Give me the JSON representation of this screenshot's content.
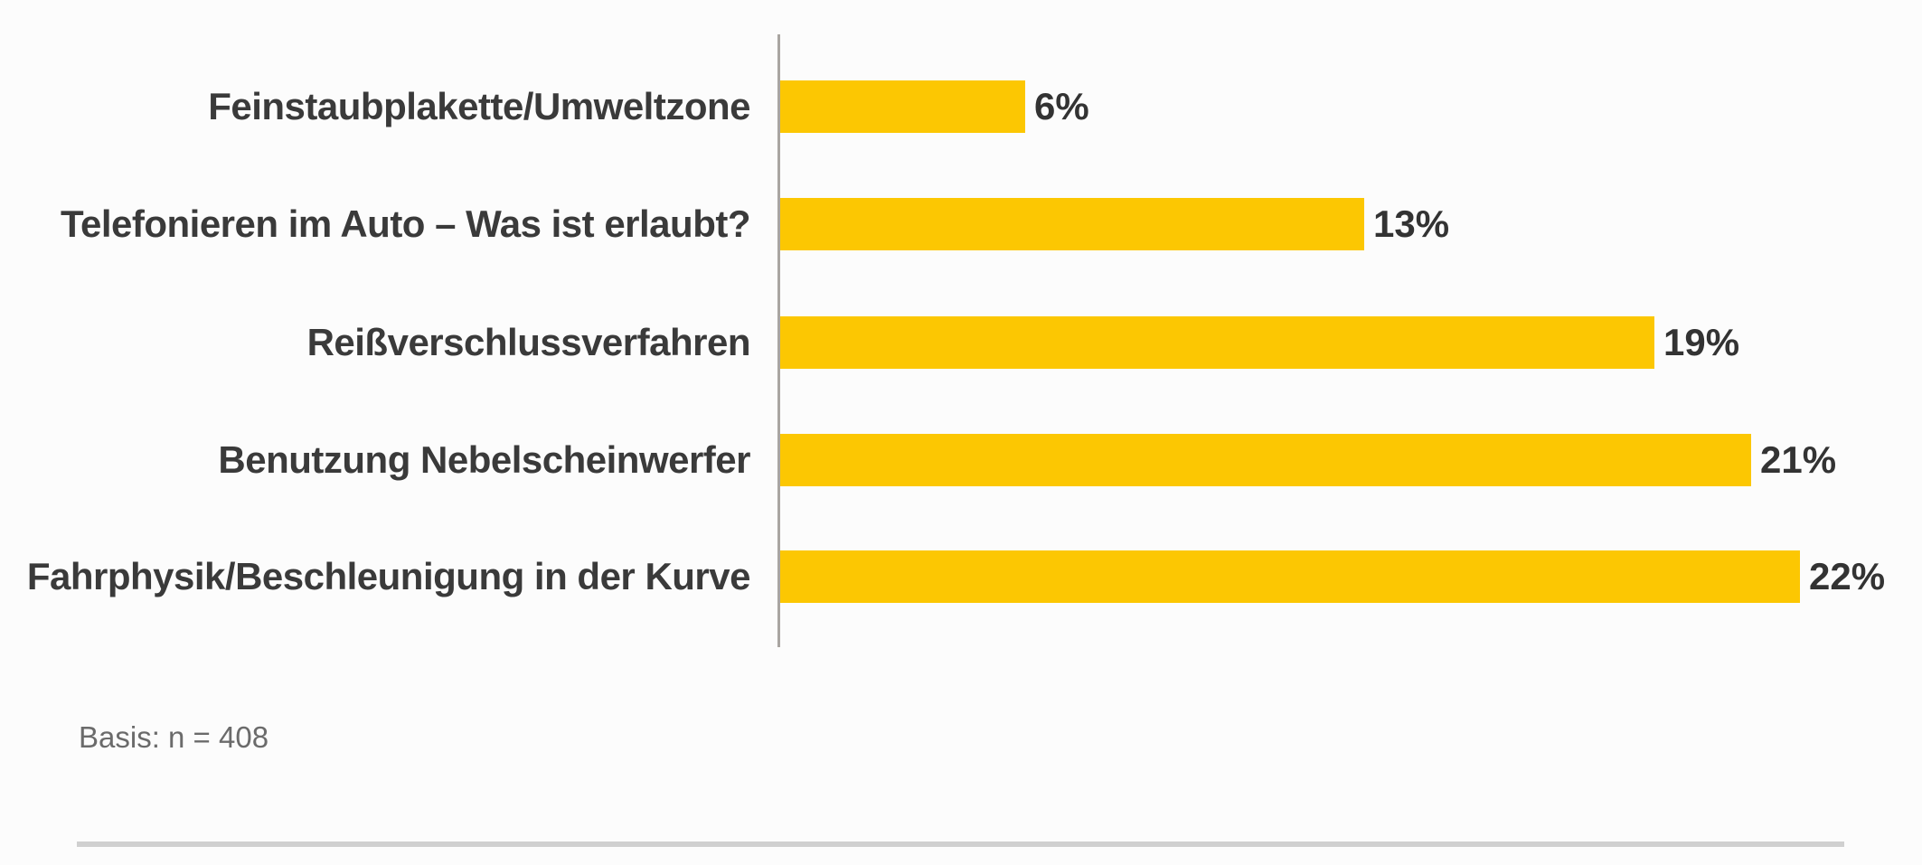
{
  "chart_data": {
    "type": "bar",
    "orientation": "horizontal",
    "title": "",
    "xlabel": "",
    "ylabel": "",
    "grid": false,
    "legend": null,
    "categories": [
      "Feinstaubplakette/Umweltzone",
      "Telefonieren im Auto – Was ist erlaubt?",
      "Reißverschlussverfahren",
      "Benutzung Nebelscheinwerfer",
      "Fahrphysik/Beschleunigung in der Kurve"
    ],
    "values": [
      6,
      13,
      19,
      21,
      22
    ],
    "value_labels": [
      "6%",
      "13%",
      "19%",
      "21%",
      "22%"
    ],
    "value_unit": "%",
    "xlim": [
      0,
      24.5
    ],
    "bar_color": "#FCC702",
    "category_label_color": "#3A3A3A",
    "value_label_color": "#333333",
    "axis_line_color": "#A9A5A1"
  },
  "footnote": {
    "basis": "Basis: n = 408"
  },
  "colors": {
    "background": "#FCFCFC",
    "divider": "#D0D0D0",
    "footnote_text": "#6B6B6B"
  }
}
